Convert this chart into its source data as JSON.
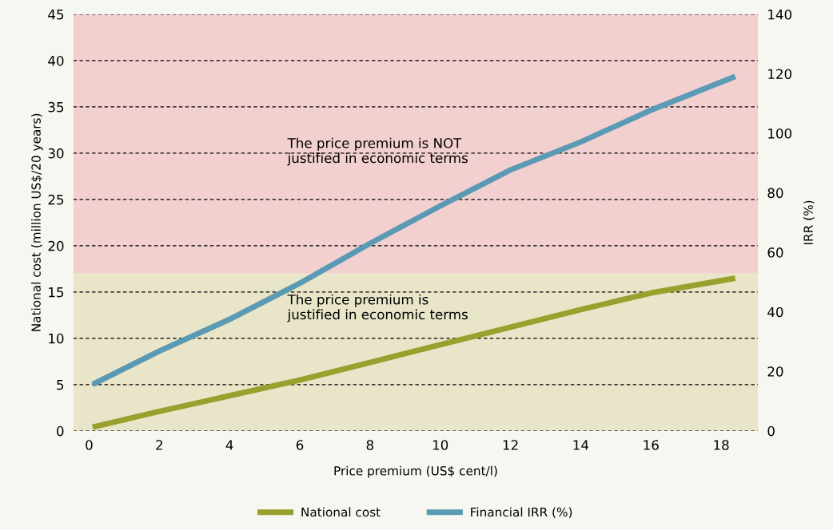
{
  "chart_data": {
    "type": "line",
    "xlabel": "Price premium (US$ cent/l)",
    "ylabel": "National cost (million US$/20 years)",
    "y2label": "IRR (%)",
    "series": [
      {
        "name": "National cost",
        "color": "#98a02e",
        "x": [
          0.1,
          2,
          4,
          6,
          8,
          10,
          12,
          14,
          16,
          18.4
        ],
        "values": [
          0.4,
          2.1,
          3.8,
          5.5,
          7.4,
          9.3,
          11.2,
          13.1,
          14.9,
          16.5
        ]
      },
      {
        "name": "Financial IRR (%)",
        "color": "#5b9ab5",
        "axis": "y2",
        "x": [
          0.1,
          2,
          4,
          6,
          8,
          10,
          12,
          14,
          16,
          18.4
        ],
        "values": [
          15.6,
          26.8,
          37.5,
          49.6,
          63,
          75.6,
          87.7,
          97.1,
          107.8,
          119.1
        ]
      }
    ],
    "xlim": [
      -0.45,
      19.05
    ],
    "xticks": [
      0,
      2,
      4,
      6,
      8,
      10,
      12,
      14,
      16,
      18
    ],
    "ylim": [
      0,
      45
    ],
    "yticks": [
      0,
      5,
      10,
      15,
      20,
      25,
      30,
      35,
      40,
      45
    ],
    "y2lim": [
      0,
      140
    ],
    "y2ticks": [
      0,
      20,
      40,
      60,
      80,
      100,
      120,
      140
    ],
    "bands": [
      {
        "axis": "y",
        "from": 17,
        "to": 45,
        "label": "The price premium is NOT\njustified in economic terms",
        "color": "#f2d0cf"
      },
      {
        "axis": "y",
        "from": 0,
        "to": 17,
        "label": "The price premium is\njustified in economic terms",
        "color": "#e8e5c8"
      }
    ],
    "grid": "y",
    "legend": "bottom",
    "marker": "none",
    "line_style": "solid"
  }
}
